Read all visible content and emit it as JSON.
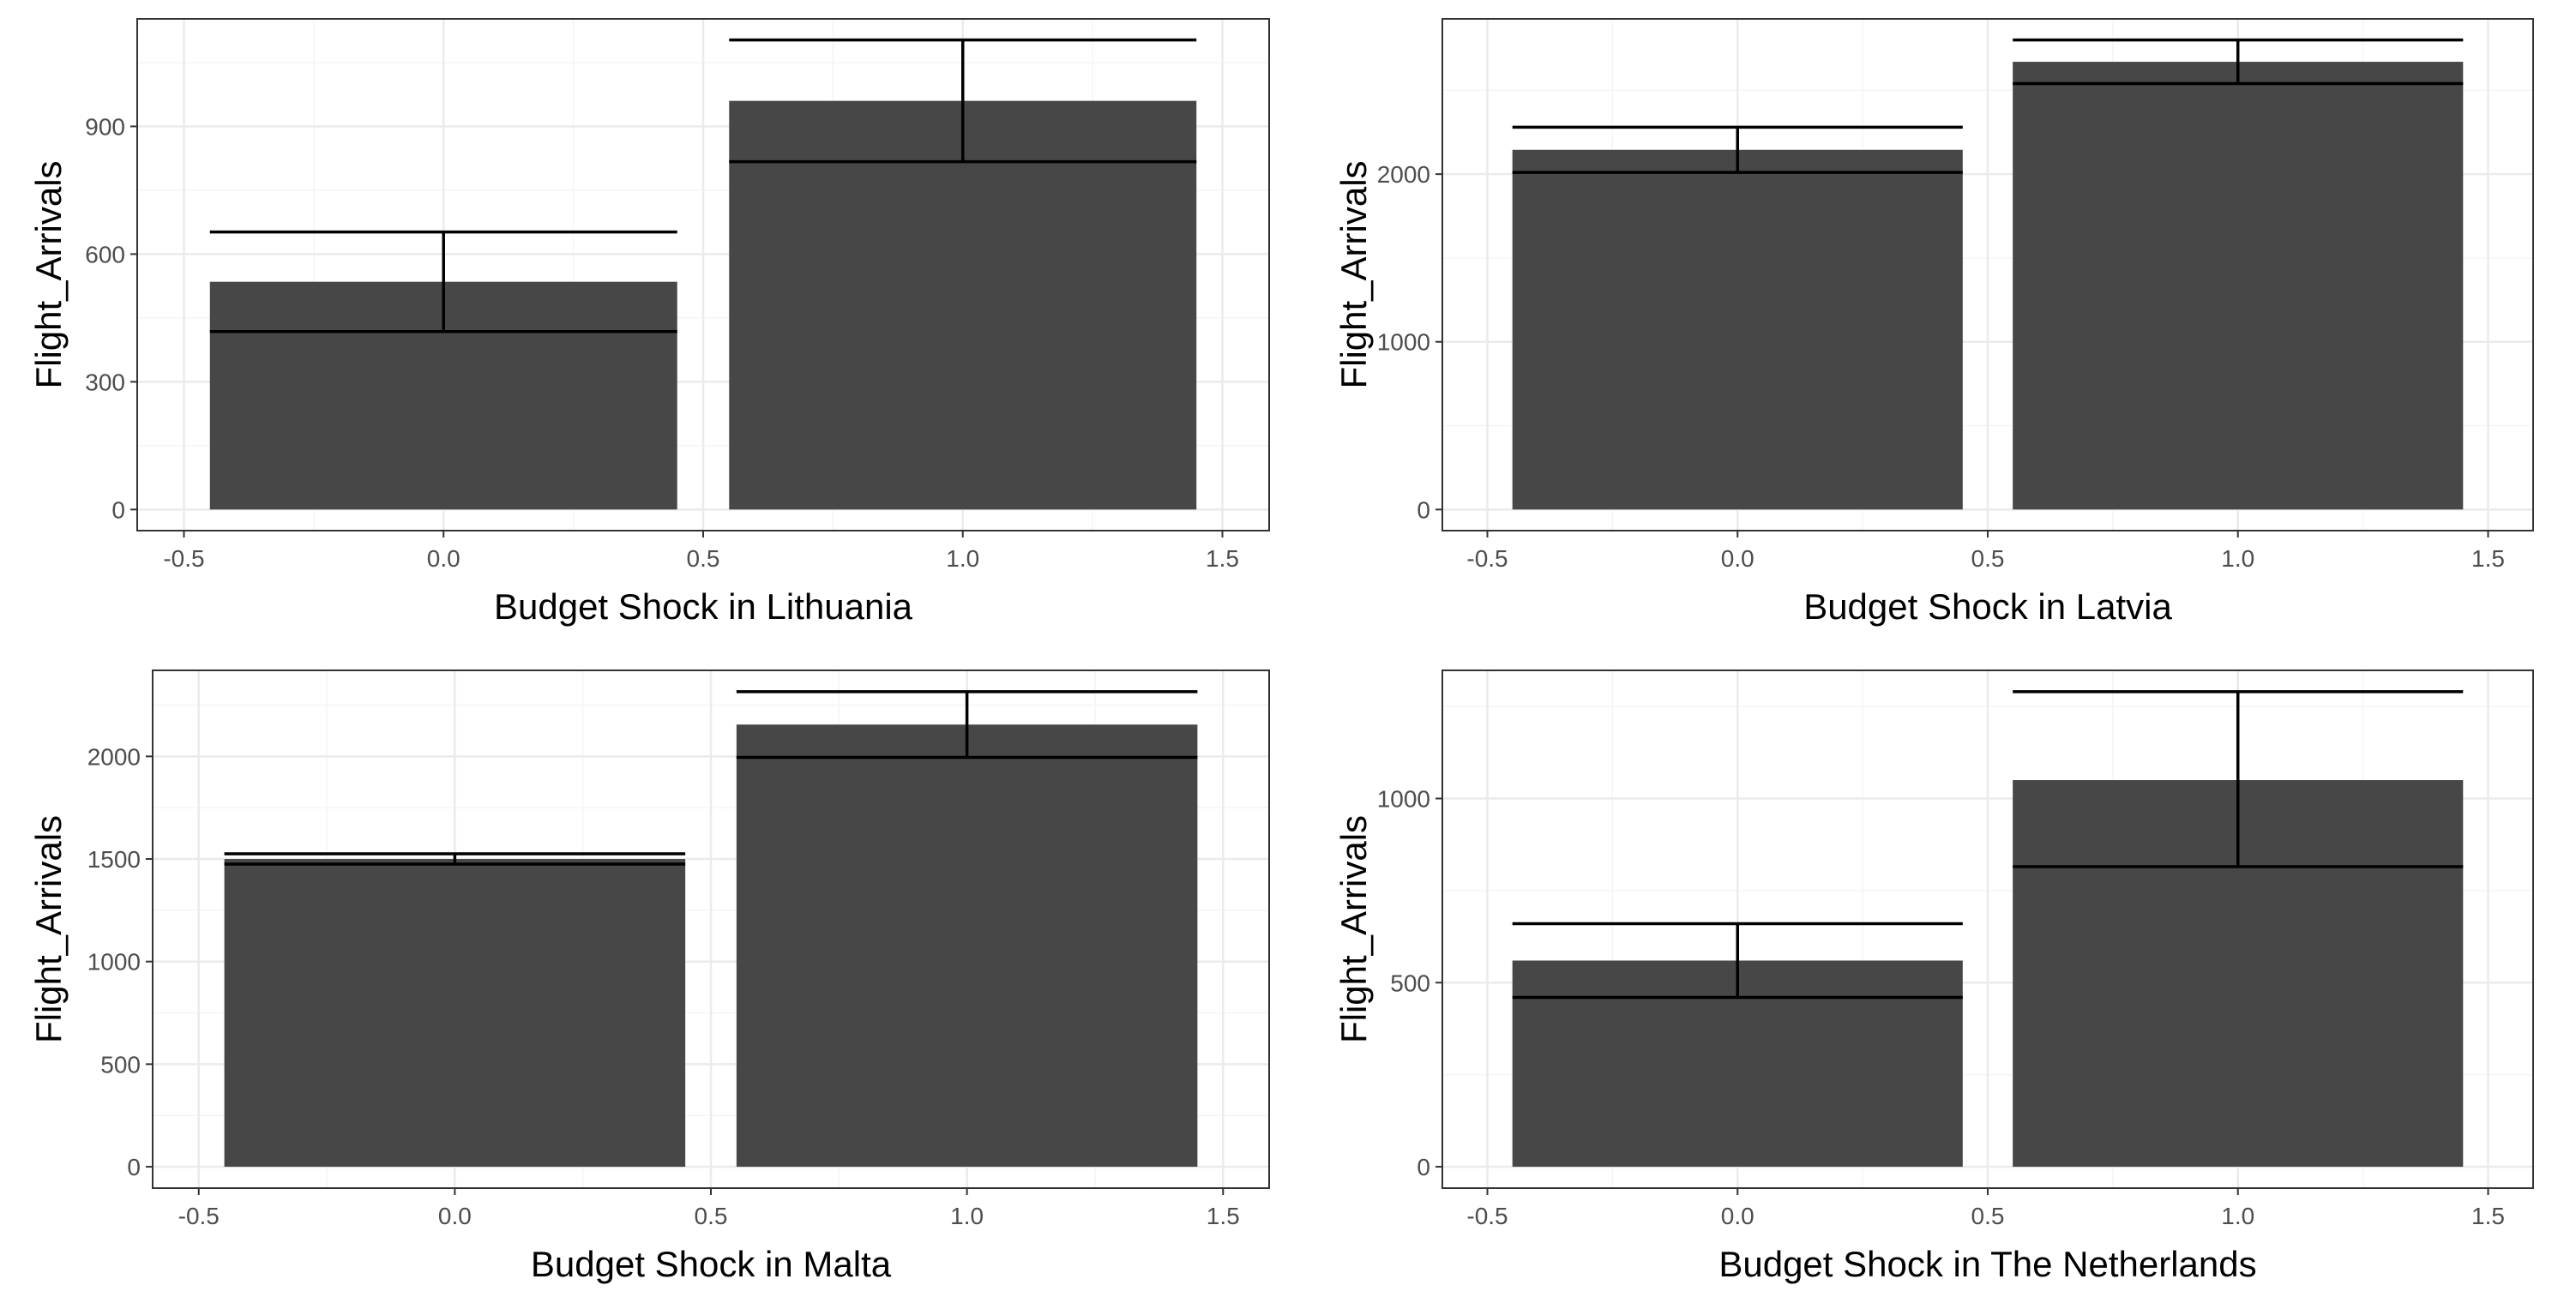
{
  "chart_data": [
    {
      "type": "bar",
      "xlabel": "Budget Shock in Lithuania",
      "ylabel": "Flight_Arrivals",
      "x": [
        0,
        1
      ],
      "values": [
        535,
        960
      ],
      "error_low": [
        418,
        817
      ],
      "error_high": [
        652,
        1103
      ],
      "xlim": [
        -0.5,
        1.5
      ],
      "ylim": [
        0,
        1103
      ],
      "xticks": [
        "-0.5",
        "0.0",
        "0.5",
        "1.0",
        "1.5"
      ],
      "xtick_values": [
        -0.5,
        0,
        0.5,
        1,
        1.5
      ],
      "yticks": [
        "0",
        "300",
        "600",
        "900"
      ],
      "ytick_values": [
        0,
        300,
        600,
        900
      ],
      "grid": true
    },
    {
      "type": "bar",
      "xlabel": "Budget Shock in Latvia",
      "ylabel": "Flight_Arrivals",
      "x": [
        0,
        1
      ],
      "values": [
        2145,
        2670
      ],
      "error_low": [
        2010,
        2540
      ],
      "error_high": [
        2280,
        2800
      ],
      "xlim": [
        -0.5,
        1.5
      ],
      "ylim": [
        0,
        2800
      ],
      "xticks": [
        "-0.5",
        "0.0",
        "0.5",
        "1.0",
        "1.5"
      ],
      "xtick_values": [
        -0.5,
        0,
        0.5,
        1,
        1.5
      ],
      "yticks": [
        "0",
        "1000",
        "2000"
      ],
      "ytick_values": [
        0,
        1000,
        2000
      ],
      "grid": true
    },
    {
      "type": "bar",
      "xlabel": "Budget Shock in Malta",
      "ylabel": "Flight_Arrivals",
      "x": [
        0,
        1
      ],
      "values": [
        1500,
        2155
      ],
      "error_low": [
        1475,
        1995
      ],
      "error_high": [
        1525,
        2315
      ],
      "xlim": [
        -0.5,
        1.5
      ],
      "ylim": [
        0,
        2315
      ],
      "xticks": [
        "-0.5",
        "0.0",
        "0.5",
        "1.0",
        "1.5"
      ],
      "xtick_values": [
        -0.5,
        0,
        0.5,
        1,
        1.5
      ],
      "yticks": [
        "0",
        "500",
        "1000",
        "1500",
        "2000"
      ],
      "ytick_values": [
        0,
        500,
        1000,
        1500,
        2000
      ],
      "grid": true
    },
    {
      "type": "bar",
      "xlabel": "Budget Shock in The Netherlands",
      "ylabel": "Flight_Arrivals",
      "x": [
        0,
        1
      ],
      "values": [
        560,
        1050
      ],
      "error_low": [
        460,
        815
      ],
      "error_high": [
        660,
        1290
      ],
      "xlim": [
        -0.5,
        1.5
      ],
      "ylim": [
        0,
        1290
      ],
      "xticks": [
        "-0.5",
        "0.0",
        "0.5",
        "1.0",
        "1.5"
      ],
      "xtick_values": [
        -0.5,
        0,
        0.5,
        1,
        1.5
      ],
      "yticks": [
        "0",
        "500",
        "1000"
      ],
      "ytick_values": [
        0,
        500,
        1000
      ],
      "grid": true
    }
  ],
  "colors": {
    "bar": "#474747",
    "error_bar": "#000000",
    "grid_major": "#ebebeb",
    "grid_minor": "#f5f5f5",
    "panel_border": "#333333",
    "tick_label": "#4d4d4d"
  }
}
